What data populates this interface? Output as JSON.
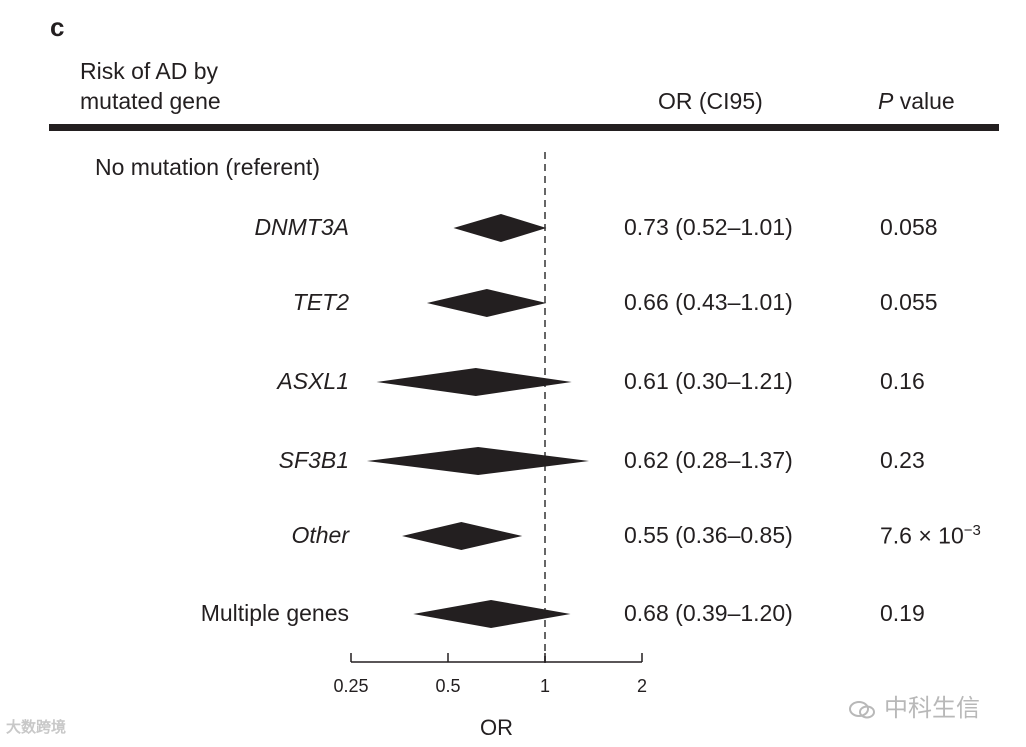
{
  "panel_label": "c",
  "header": {
    "line1": "Risk of AD by",
    "line2": "mutated gene",
    "or_col": "OR (CI95)",
    "p_col_italic": "P",
    "p_col_rest": " value"
  },
  "referent_label": "No mutation (referent)",
  "chart_data": {
    "type": "forest",
    "x_scale": "log2",
    "xlim": [
      0.25,
      2
    ],
    "xticks": [
      0.25,
      0.5,
      1,
      2
    ],
    "xtick_labels": [
      "0.25",
      "0.5",
      "1",
      "2"
    ],
    "xlabel": "OR",
    "reference_line": 1,
    "rows": [
      {
        "label": "DNMT3A",
        "italic": true,
        "or": 0.73,
        "lo": 0.52,
        "hi": 1.01,
        "or_text": "0.73 (0.52–1.01)",
        "p_text": "0.058"
      },
      {
        "label": "TET2",
        "italic": true,
        "or": 0.66,
        "lo": 0.43,
        "hi": 1.01,
        "or_text": "0.66 (0.43–1.01)",
        "p_text": "0.055"
      },
      {
        "label": "ASXL1",
        "italic": true,
        "or": 0.61,
        "lo": 0.3,
        "hi": 1.21,
        "or_text": "0.61 (0.30–1.21)",
        "p_text": "0.16"
      },
      {
        "label": "SF3B1",
        "italic": true,
        "or": 0.62,
        "lo": 0.28,
        "hi": 1.37,
        "or_text": "0.62 (0.28–1.37)",
        "p_text": "0.23"
      },
      {
        "label": "Other",
        "italic": true,
        "or": 0.55,
        "lo": 0.36,
        "hi": 0.85,
        "or_text": "0.55 (0.36–0.85)",
        "p_text": "7.6 × 10",
        "p_exp": "−3"
      },
      {
        "label": "Multiple genes",
        "italic": false,
        "or": 0.68,
        "lo": 0.39,
        "hi": 1.2,
        "or_text": "0.68 (0.39–1.20)",
        "p_text": "0.19"
      }
    ]
  },
  "watermark_left": "大数跨境",
  "watermark_right": "中科生信"
}
